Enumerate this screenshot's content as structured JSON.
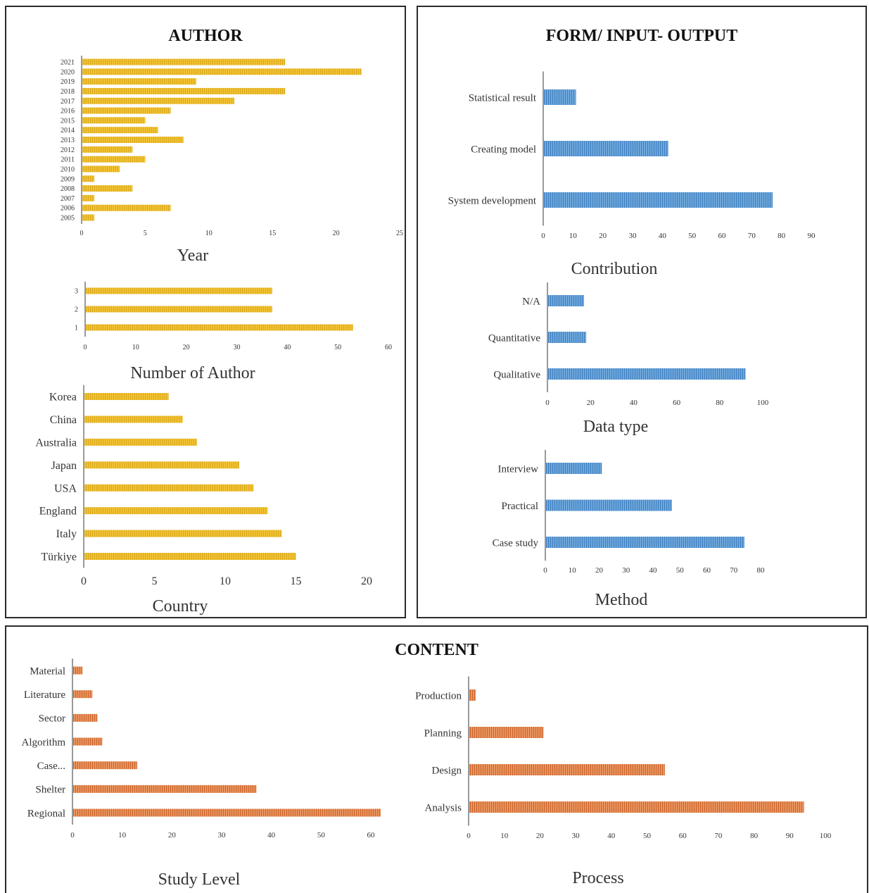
{
  "panels": {
    "author": "AUTHOR",
    "form": "FORM/ INPUT- OUTPUT",
    "content": "CONTENT"
  },
  "colors": {
    "yellow": "#F2C232",
    "blue": "#5B9BD5",
    "orange": "#E2834A",
    "axis": "#aaaaaa"
  },
  "chart_data": [
    {
      "id": "year",
      "type": "bar",
      "orientation": "horizontal",
      "panel": "author",
      "title": "",
      "xlabel": "Year",
      "ylabel": "",
      "categories": [
        "2021",
        "2020",
        "2019",
        "2018",
        "2017",
        "2016",
        "2015",
        "2014",
        "2013",
        "2012",
        "2011",
        "2010",
        "2009",
        "2008",
        "2007",
        "2006",
        "2005"
      ],
      "values": [
        16,
        22,
        9,
        16,
        12,
        7,
        5,
        6,
        8,
        4,
        5,
        3,
        1,
        4,
        1,
        7,
        1
      ],
      "xlim": [
        0,
        25
      ],
      "ticks": [
        0,
        5,
        10,
        15,
        20,
        25
      ],
      "grid": false,
      "legend": "none"
    },
    {
      "id": "authors",
      "type": "bar",
      "orientation": "horizontal",
      "panel": "author",
      "title": "",
      "xlabel": "Number of Author",
      "ylabel": "",
      "categories": [
        "3",
        "2",
        "1"
      ],
      "values": [
        37,
        37,
        53
      ],
      "xlim": [
        0,
        60
      ],
      "ticks": [
        0,
        10,
        20,
        30,
        40,
        50,
        60
      ],
      "grid": false,
      "legend": "none"
    },
    {
      "id": "country",
      "type": "bar",
      "orientation": "horizontal",
      "panel": "author",
      "title": "",
      "xlabel": "Country",
      "ylabel": "",
      "categories": [
        "Korea",
        "China",
        "Australia",
        "Japan",
        "USA",
        "England",
        "Italy",
        "Türkiye"
      ],
      "values": [
        6,
        7,
        8,
        11,
        12,
        13,
        14,
        15
      ],
      "xlim": [
        0,
        20
      ],
      "ticks": [
        0,
        5,
        10,
        15,
        20
      ],
      "grid": false,
      "legend": "none"
    },
    {
      "id": "contribution",
      "type": "bar",
      "orientation": "horizontal",
      "panel": "form",
      "title": "",
      "xlabel": "Contribution",
      "ylabel": "",
      "categories": [
        "Statistical result",
        "Creating model",
        "System development"
      ],
      "values": [
        11,
        42,
        77
      ],
      "xlim": [
        0,
        90
      ],
      "ticks": [
        0,
        10,
        20,
        30,
        40,
        50,
        60,
        70,
        80,
        90
      ],
      "grid": false,
      "legend": "none"
    },
    {
      "id": "datatype",
      "type": "bar",
      "orientation": "horizontal",
      "panel": "form",
      "title": "",
      "xlabel": "Data type",
      "ylabel": "",
      "categories": [
        "N/A",
        "Quantitative",
        "Qualitative"
      ],
      "values": [
        17,
        18,
        92
      ],
      "xlim": [
        0,
        100
      ],
      "ticks": [
        0,
        20,
        40,
        60,
        80,
        100
      ],
      "grid": false,
      "legend": "none"
    },
    {
      "id": "method",
      "type": "bar",
      "orientation": "horizontal",
      "panel": "form",
      "title": "",
      "xlabel": "Method",
      "ylabel": "",
      "categories": [
        "Interview",
        "Practical",
        "Case study"
      ],
      "values": [
        21,
        47,
        74
      ],
      "xlim": [
        0,
        80
      ],
      "ticks": [
        0,
        10,
        20,
        30,
        40,
        50,
        60,
        70,
        80
      ],
      "grid": false,
      "legend": "none"
    },
    {
      "id": "studylevel",
      "type": "bar",
      "orientation": "horizontal",
      "panel": "content",
      "title": "",
      "xlabel": "Study Level",
      "ylabel": "",
      "categories": [
        "Material",
        "Literature",
        "Sector",
        "Algorithm",
        "Case...",
        "Shelter",
        "Regional"
      ],
      "values": [
        2,
        4,
        5,
        6,
        13,
        37,
        62
      ],
      "xlim": [
        0,
        60
      ],
      "ticks": [
        0,
        10,
        20,
        30,
        40,
        50,
        60
      ],
      "grid": false,
      "legend": "none"
    },
    {
      "id": "process",
      "type": "bar",
      "orientation": "horizontal",
      "panel": "content",
      "title": "",
      "xlabel": "Process",
      "ylabel": "",
      "categories": [
        "Production",
        "Planning",
        "Design",
        "Analysis"
      ],
      "values": [
        2,
        21,
        55,
        94
      ],
      "xlim": [
        0,
        100
      ],
      "ticks": [
        0,
        10,
        20,
        30,
        40,
        50,
        60,
        70,
        80,
        90,
        100
      ],
      "grid": false,
      "legend": "none"
    }
  ]
}
